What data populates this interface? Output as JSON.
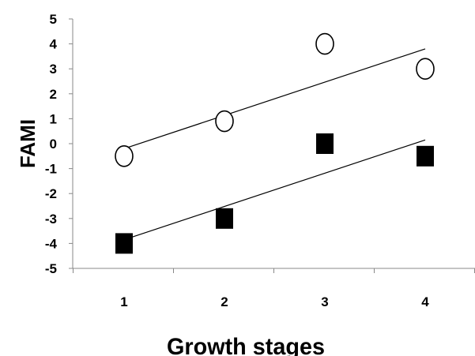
{
  "chart_data": {
    "type": "scatter",
    "xlabel": "Growth stages",
    "ylabel": "FAMI",
    "x": [
      1,
      2,
      3,
      4
    ],
    "xlim": [
      0.5,
      4.5
    ],
    "ylim": [
      -5,
      5
    ],
    "yticks": [
      5,
      4,
      3,
      2,
      1,
      0,
      -1,
      -2,
      -3,
      -4,
      -5
    ],
    "xticks": [
      1,
      2,
      3,
      4
    ],
    "grid": false,
    "legend": "none",
    "series": [
      {
        "marker": "open-circle",
        "values": [
          -0.5,
          0.9,
          4.0,
          3.0
        ],
        "trendline": {
          "start": [
            1,
            -0.2
          ],
          "end": [
            4,
            3.8
          ]
        }
      },
      {
        "marker": "filled-square",
        "values": [
          -4.0,
          -3.0,
          0.0,
          -0.5
        ],
        "trendline": {
          "start": [
            1,
            -3.85
          ],
          "end": [
            4,
            0.15
          ]
        }
      }
    ]
  }
}
